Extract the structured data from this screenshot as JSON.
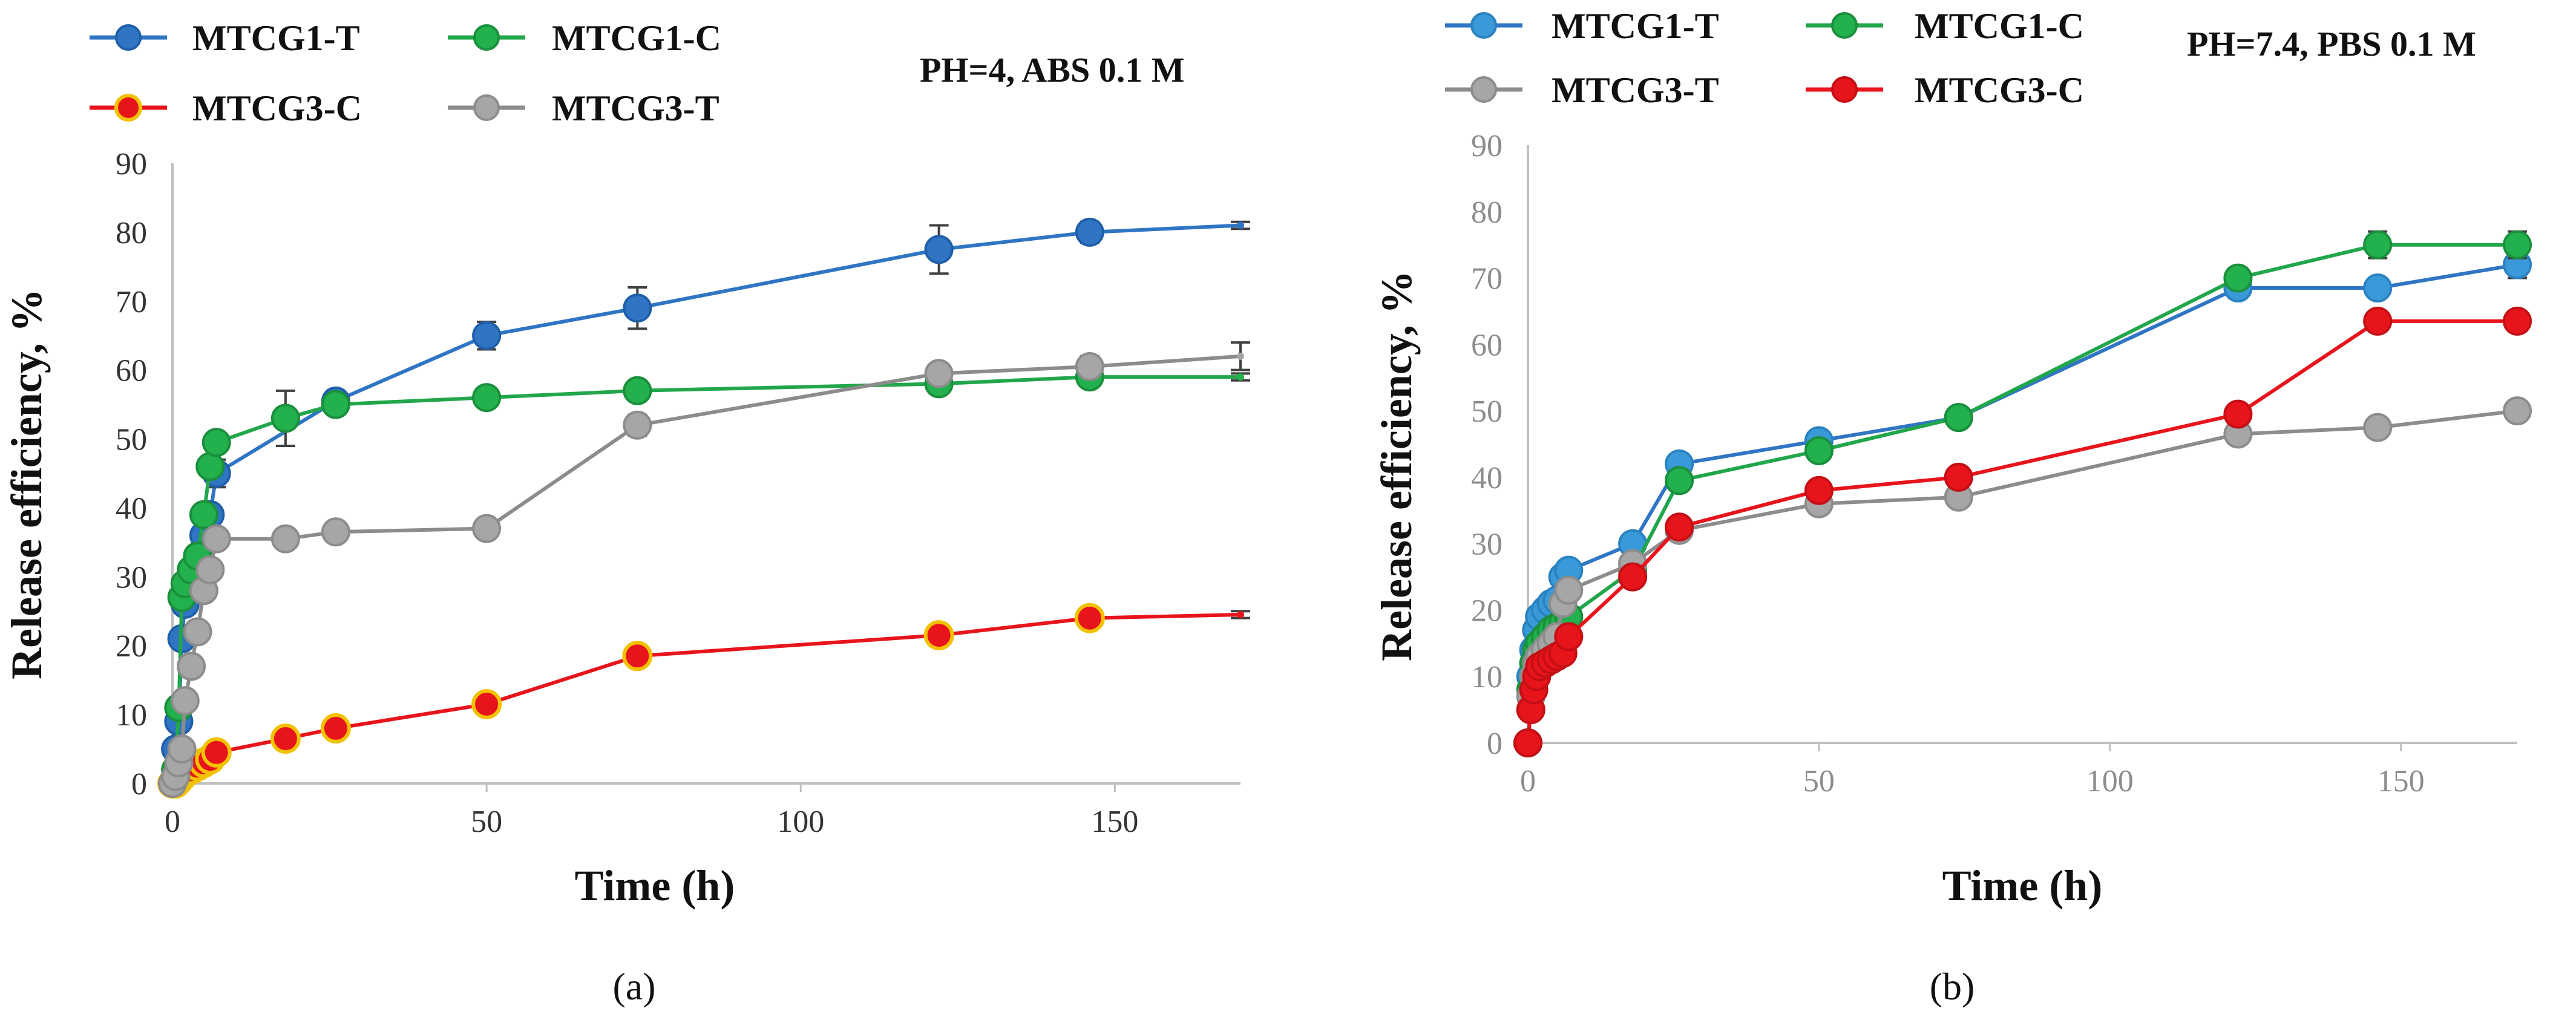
{
  "chart_data": [
    {
      "type": "line",
      "panel": "a",
      "caption": "(a)",
      "condition": "PH=4, ABS 0.1 M",
      "xlabel": "Time (h)",
      "ylabel": "Release efficiency, %",
      "xlim": [
        0,
        170
      ],
      "ylim": [
        0,
        90
      ],
      "xticks": [
        0,
        50,
        100,
        150
      ],
      "yticks": [
        0,
        10,
        20,
        30,
        40,
        50,
        60,
        70,
        80,
        90
      ],
      "tick_color": "#333333",
      "series": [
        {
          "name": "MTCG1-T",
          "color": "#2f75c4",
          "marker_fill": "#2f75c4",
          "marker_edge": "#1f5fa8",
          "x": [
            0,
            0.5,
            1,
            1.5,
            2,
            3,
            4,
            5,
            6,
            7,
            26,
            50,
            74,
            122,
            146,
            170
          ],
          "y": [
            0,
            5,
            9,
            21,
            26,
            30,
            33,
            36,
            39,
            45,
            55.5,
            65,
            69,
            77.5,
            80,
            81
          ],
          "err": [
            0,
            0,
            0,
            0,
            0,
            0,
            0,
            0,
            0,
            2,
            1.5,
            2,
            3,
            3.5,
            1.5,
            0.5
          ]
        },
        {
          "name": "MTCG1-C",
          "color": "#22a64b",
          "marker_fill": "#22b14c",
          "marker_edge": "#1a8f3c",
          "x": [
            0,
            0.5,
            1,
            1.5,
            2,
            3,
            4,
            5,
            6,
            7,
            18,
            26,
            50,
            74,
            122,
            146,
            170
          ],
          "y": [
            0,
            2,
            11,
            27,
            29,
            31,
            33,
            39,
            46,
            49.5,
            53,
            55,
            56,
            57,
            58,
            59,
            59
          ],
          "err": [
            0,
            0,
            0,
            0,
            0,
            0,
            0,
            0,
            0,
            0,
            4,
            1,
            0,
            0,
            0,
            0,
            0.5
          ]
        },
        {
          "name": "MTCG3-C",
          "color": "#e8141b",
          "marker_fill": "#e8141b",
          "marker_edge": "#f2c200",
          "x": [
            0,
            0.5,
            1,
            1.5,
            2,
            3,
            4,
            5,
            6,
            7,
            18,
            26,
            50,
            74,
            122,
            146,
            170
          ],
          "y": [
            0,
            0,
            0.5,
            1,
            1.5,
            2,
            2.5,
            3,
            3.5,
            4.5,
            6.5,
            8,
            11.5,
            18.5,
            21.5,
            24,
            24.5
          ],
          "err": [
            0,
            0,
            0,
            0,
            0,
            0,
            0,
            0,
            0,
            0,
            0,
            0,
            0,
            0,
            0,
            0,
            0.5
          ]
        },
        {
          "name": "MTCG3-T",
          "color": "#8c8c8c",
          "marker_fill": "#a6a6a6",
          "marker_edge": "#8c8c8c",
          "x": [
            0,
            0.5,
            1,
            1.5,
            2,
            3,
            4,
            5,
            6,
            7,
            18,
            26,
            50,
            74,
            122,
            146,
            170
          ],
          "y": [
            0,
            1,
            3,
            5,
            12,
            17,
            22,
            28,
            31,
            35.5,
            35.5,
            36.5,
            37,
            52,
            59.5,
            60.5,
            62
          ],
          "err": [
            0,
            0,
            0,
            0,
            0,
            0,
            0,
            0,
            0,
            0,
            0,
            0,
            0,
            1.5,
            1,
            1.5,
            2
          ]
        }
      ]
    },
    {
      "type": "line",
      "panel": "b",
      "caption": "(b)",
      "condition": "PH=7.4, PBS 0.1 M",
      "xlabel": "Time (h)",
      "ylabel": "Release efficiency, %",
      "xlim": [
        0,
        170
      ],
      "ylim": [
        0,
        90
      ],
      "xticks": [
        0,
        50,
        100,
        150
      ],
      "yticks": [
        0,
        10,
        20,
        30,
        40,
        50,
        60,
        70,
        80,
        90
      ],
      "tick_color": "#8c8c8c",
      "series": [
        {
          "name": "MTCG1-T",
          "color": "#2f75c4",
          "marker_fill": "#3a9ad9",
          "marker_edge": "#2a82c0",
          "x": [
            0,
            0.5,
            1,
            1.5,
            2,
            3,
            4,
            5,
            6,
            7,
            18,
            26,
            50,
            74,
            122,
            146,
            170
          ],
          "y": [
            0,
            10,
            14,
            17,
            19,
            20,
            21,
            21.5,
            25,
            26,
            30,
            42,
            45.5,
            49,
            68.5,
            68.5,
            72
          ],
          "err": [
            0,
            0,
            0,
            0,
            0,
            0,
            0,
            0,
            0,
            0,
            0,
            0.5,
            0,
            0,
            1.5,
            0.5,
            2
          ]
        },
        {
          "name": "MTCG1-C",
          "color": "#22a64b",
          "marker_fill": "#22b14c",
          "marker_edge": "#1a8f3c",
          "x": [
            0,
            0.5,
            1,
            1.5,
            2,
            3,
            4,
            5,
            6,
            7,
            18,
            26,
            50,
            74,
            122,
            146,
            170
          ],
          "y": [
            0,
            8,
            12,
            14,
            15,
            16,
            17,
            17.5,
            18,
            19,
            26,
            39.5,
            44,
            49,
            70,
            75,
            75
          ],
          "err": [
            0,
            0,
            0,
            0,
            0,
            0,
            0,
            0,
            0,
            0,
            0,
            0,
            0,
            1,
            1.5,
            2,
            2
          ]
        },
        {
          "name": "MTCG3-T",
          "color": "#8c8c8c",
          "marker_fill": "#a6a6a6",
          "marker_edge": "#8c8c8c",
          "x": [
            0,
            0.5,
            1,
            1.5,
            2,
            3,
            4,
            5,
            6,
            7,
            18,
            26,
            50,
            74,
            122,
            146,
            170
          ],
          "y": [
            0,
            7,
            10,
            12,
            13,
            14,
            15,
            16,
            21,
            23,
            27,
            32,
            36,
            37,
            46.5,
            47.5,
            50
          ],
          "err": [
            0,
            0,
            0,
            0,
            0,
            0,
            0,
            0,
            0,
            0,
            0,
            0,
            0,
            0,
            0.5,
            0.5,
            1
          ]
        },
        {
          "name": "MTCG3-C",
          "color": "#e8141b",
          "marker_fill": "#e8141b",
          "marker_edge": "#c40f15",
          "x": [
            0,
            0.5,
            1,
            1.5,
            2,
            3,
            4,
            5,
            6,
            7,
            18,
            26,
            50,
            74,
            122,
            146,
            170
          ],
          "y": [
            0,
            5,
            8,
            10,
            11.5,
            12,
            12.5,
            13,
            13.5,
            16,
            25,
            32.5,
            38,
            40,
            49.5,
            63.5,
            63.5
          ],
          "err": [
            0,
            0,
            0,
            0,
            0,
            0,
            0,
            0,
            0,
            0,
            0,
            0,
            0,
            0,
            0,
            1.5,
            1.5
          ]
        }
      ]
    }
  ]
}
